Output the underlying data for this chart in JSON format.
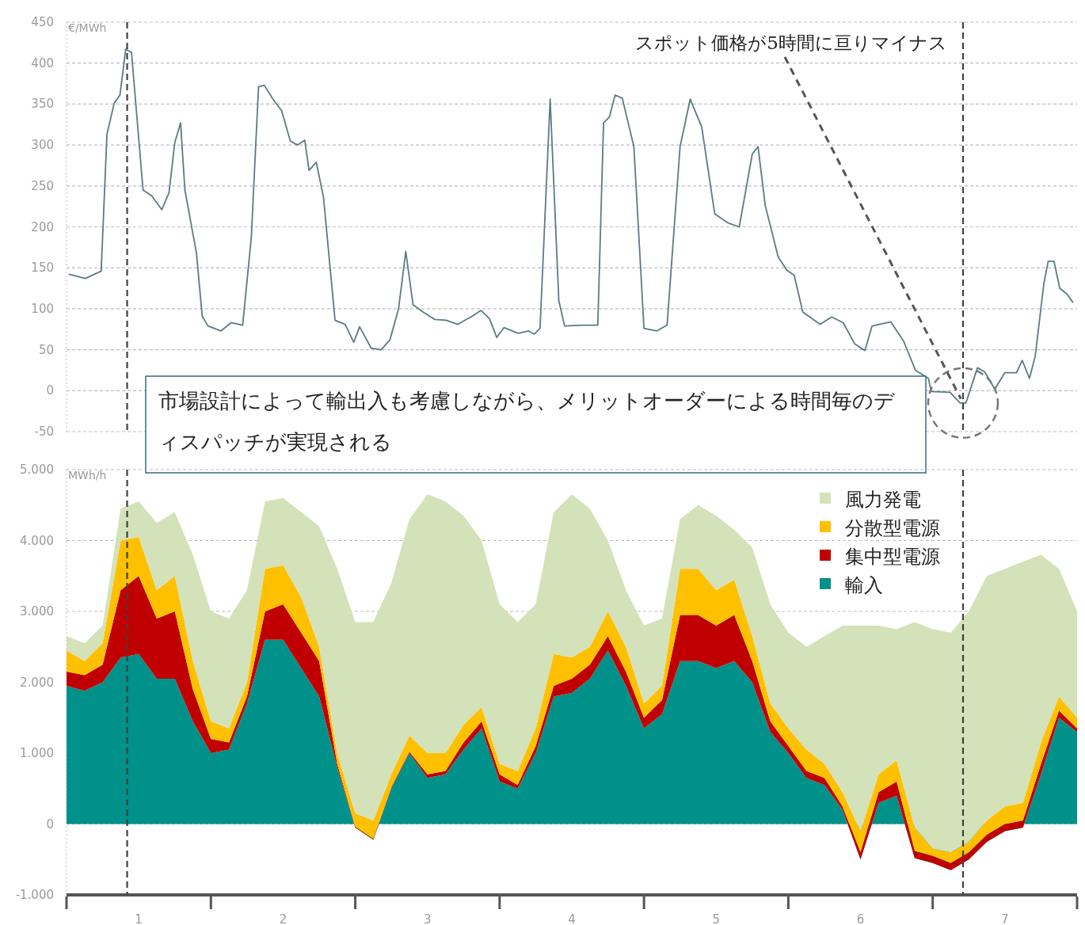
{
  "chart_data": [
    {
      "type": "line",
      "ylabel": "€/MWh",
      "xlim": [
        0.5,
        7.5
      ],
      "ylim": [
        -50,
        450
      ],
      "yticks": [
        -50,
        0,
        50,
        100,
        150,
        200,
        250,
        300,
        350,
        400,
        450
      ],
      "tick_labels": "y",
      "grid": "y",
      "x": [
        0.52,
        0.63,
        0.74,
        0.78,
        0.83,
        0.87,
        0.91,
        0.95,
        1.03,
        1.09,
        1.16,
        1.21,
        1.25,
        1.29,
        1.32,
        1.4,
        1.44,
        1.48,
        1.57,
        1.64,
        1.72,
        1.78,
        1.83,
        1.87,
        1.93,
        1.99,
        2.05,
        2.1,
        2.15,
        2.18,
        2.23,
        2.28,
        2.36,
        2.43,
        2.49,
        2.53,
        2.61,
        2.68,
        2.74,
        2.8,
        2.85,
        2.9,
        2.97,
        3.05,
        3.13,
        3.21,
        3.31,
        3.37,
        3.43,
        3.48,
        3.53,
        3.63,
        3.7,
        3.74,
        3.78,
        3.85,
        3.91,
        3.95,
        4.07,
        4.18,
        4.22,
        4.26,
        4.3,
        4.35,
        4.43,
        4.5,
        4.59,
        4.66,
        4.75,
        4.82,
        4.9,
        4.99,
        5.08,
        5.16,
        5.25,
        5.29,
        5.34,
        5.43,
        5.49,
        5.54,
        5.6,
        5.72,
        5.8,
        5.88,
        5.96,
        6.03,
        6.08,
        6.21,
        6.3,
        6.38,
        6.47,
        6.49,
        6.62,
        6.69,
        6.73,
        6.81,
        6.86,
        6.93,
        7.0,
        7.08,
        7.12,
        7.17,
        7.21,
        7.27,
        7.3,
        7.34,
        7.38,
        7.43,
        7.47
      ],
      "series": [
        {
          "color": "#5b7b82",
          "values": [
            142,
            137,
            146,
            313,
            351,
            361,
            417,
            413,
            245,
            238,
            221,
            242,
            303,
            327,
            245,
            168,
            91,
            79,
            73,
            83,
            80,
            187,
            371,
            373,
            356,
            342,
            305,
            300,
            306,
            269,
            279,
            236,
            86,
            81,
            59,
            78,
            52,
            50,
            62,
            100,
            170,
            105,
            96,
            87,
            86,
            81,
            91,
            98,
            88,
            65,
            77,
            70,
            73,
            69,
            76,
            356,
            110,
            79,
            80,
            80,
            327,
            334,
            361,
            357,
            298,
            76,
            73,
            80,
            298,
            356,
            322,
            216,
            205,
            200,
            289,
            298,
            226,
            163,
            147,
            141,
            96,
            81,
            90,
            83,
            57,
            49,
            79,
            84,
            60,
            25,
            15,
            -1,
            -2,
            -15,
            -15,
            28,
            23,
            2,
            22,
            22,
            37,
            15,
            42,
            131,
            158,
            158,
            125,
            118,
            108
          ]
        }
      ],
      "ref_lines": [
        {
          "axis": "x",
          "value": 0.92,
          "color": "#404040",
          "line_style": "dashed"
        },
        {
          "axis": "x",
          "value": 6.71,
          "color": "#404040",
          "line_style": "dashed"
        }
      ],
      "annotations": [
        {
          "text": "スポット価格が5時間に亘りマイナス",
          "x": 6.71,
          "y": -15
        },
        "市場設計によって輸出入も考慮しながら、メリットオーダーによる時間毎のディスパッチが実現される"
      ]
    },
    {
      "type": "area",
      "stacked": true,
      "ylabel": "MWh/h",
      "xlim": [
        0.5,
        7.5
      ],
      "ylim": [
        -1000,
        5000
      ],
      "grid": "y",
      "legend": "top right",
      "yticks": [
        {
          "value": -1000,
          "label": "-1.000"
        },
        0,
        {
          "value": 1000,
          "label": "1.000"
        },
        {
          "value": 2000,
          "label": "2.000"
        },
        {
          "value": 3000,
          "label": "3.000"
        },
        {
          "value": 4000,
          "label": "4.000"
        },
        {
          "value": 5000,
          "label": "5.000"
        }
      ],
      "xticks": [
        {
          "value": 0.5,
          "label": null
        },
        1,
        {
          "value": 1.5,
          "label": null
        },
        2,
        {
          "value": 2.5,
          "label": null
        },
        3,
        {
          "value": 3.5,
          "label": null
        },
        4,
        {
          "value": 4.5,
          "label": null
        },
        5,
        {
          "value": 5.5,
          "label": null
        },
        6,
        {
          "value": 6.5,
          "label": null
        },
        7,
        {
          "value": 7.5,
          "label": null
        }
      ],
      "x": [
        0.5,
        0.625,
        0.75,
        0.875,
        1.0,
        1.125,
        1.25,
        1.375,
        1.5,
        1.625,
        1.75,
        1.875,
        2.0,
        2.125,
        2.25,
        2.375,
        2.5,
        2.625,
        2.75,
        2.875,
        3.0,
        3.125,
        3.25,
        3.375,
        3.5,
        3.625,
        3.75,
        3.875,
        4.0,
        4.125,
        4.25,
        4.375,
        4.5,
        4.625,
        4.75,
        4.875,
        5.0,
        5.125,
        5.25,
        5.375,
        5.5,
        5.625,
        5.75,
        5.875,
        6.0,
        6.125,
        6.25,
        6.375,
        6.5,
        6.625,
        6.75,
        6.875,
        7.0,
        7.125,
        7.25,
        7.375,
        7.5
      ],
      "series": [
        {
          "name": "輸入",
          "color": "#00918a",
          "values": [
            1950,
            1880,
            2000,
            2350,
            2400,
            2050,
            2050,
            1450,
            1000,
            1050,
            1700,
            2600,
            2600,
            2200,
            1800,
            800,
            -50,
            -220,
            500,
            1000,
            650,
            700,
            1050,
            1350,
            600,
            500,
            1000,
            1800,
            1850,
            2050,
            2450,
            1950,
            1350,
            1550,
            2300,
            2300,
            2200,
            2300,
            2000,
            1300,
            1000,
            650,
            550,
            200,
            -500,
            300,
            400,
            -480,
            -550,
            -650,
            -500,
            -250,
            -100,
            -50,
            700,
            1500,
            1300
          ]
        },
        {
          "name": "集中型電源",
          "color": "#c00000",
          "values": [
            200,
            220,
            250,
            950,
            1100,
            850,
            950,
            450,
            200,
            100,
            100,
            400,
            500,
            500,
            500,
            50,
            10,
            10,
            20,
            20,
            50,
            50,
            100,
            100,
            100,
            50,
            100,
            150,
            200,
            200,
            200,
            200,
            150,
            200,
            650,
            650,
            600,
            650,
            300,
            150,
            100,
            100,
            100,
            50,
            100,
            150,
            200,
            100,
            100,
            100,
            100,
            100,
            100,
            100,
            150,
            100,
            50
          ]
        },
        {
          "name": "分散型電源",
          "color": "#ffc000",
          "values": [
            300,
            200,
            300,
            700,
            550,
            400,
            500,
            400,
            250,
            200,
            200,
            600,
            550,
            500,
            200,
            150,
            190,
            260,
            180,
            230,
            300,
            250,
            250,
            200,
            150,
            200,
            250,
            450,
            300,
            250,
            350,
            350,
            200,
            200,
            650,
            650,
            500,
            500,
            350,
            250,
            250,
            300,
            200,
            200,
            300,
            250,
            300,
            330,
            100,
            150,
            150,
            200,
            250,
            250,
            300,
            200,
            150
          ]
        },
        {
          "name": "風力発電",
          "color": "#d3e2b8",
          "values": [
            200,
            250,
            250,
            450,
            500,
            950,
            900,
            1500,
            1550,
            1550,
            1300,
            950,
            950,
            1200,
            1700,
            2600,
            2700,
            2800,
            2700,
            3050,
            3650,
            3550,
            2950,
            2350,
            2250,
            2100,
            1750,
            2000,
            2300,
            1950,
            1000,
            800,
            1100,
            950,
            700,
            900,
            1050,
            700,
            1250,
            1400,
            1350,
            1450,
            1800,
            2350,
            2900,
            2100,
            1850,
            2900,
            3100,
            3100,
            3250,
            3450,
            3350,
            3400,
            2650,
            1800,
            1500
          ]
        }
      ],
      "ref_lines": [
        {
          "axis": "x",
          "value": 0.92,
          "color": "#404040",
          "line_style": "dashed"
        },
        {
          "axis": "x",
          "value": 6.71,
          "color": "#404040",
          "line_style": "dashed"
        }
      ]
    }
  ]
}
